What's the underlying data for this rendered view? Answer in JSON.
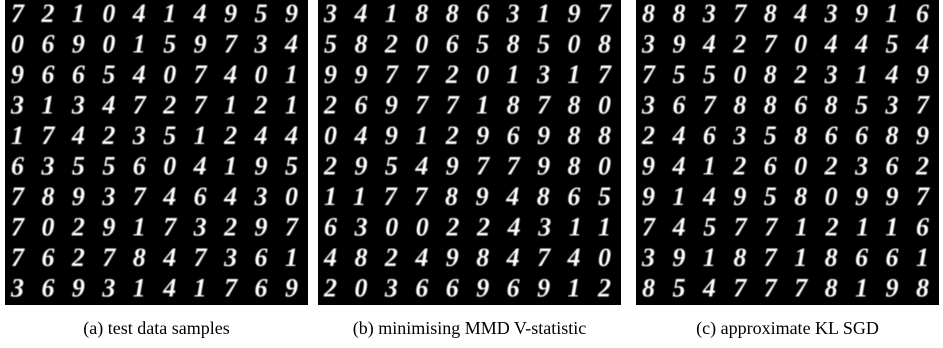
{
  "panels": [
    {
      "caption": "(a) test data samples",
      "rows": [
        "7210414959",
        "0690159734",
        "9665407401",
        "3134727121",
        "1742351244",
        "6355604195",
        "7893746430",
        "7029173297",
        "7627847361",
        "3693141769"
      ]
    },
    {
      "caption": "(b) minimising MMD V-statistic",
      "rows": [
        "3418863197",
        "5820658508",
        "9977201317",
        "2697718780",
        "0491296988",
        "2954977980",
        "1177894865",
        "6300224311",
        "4824984740",
        "2036696912"
      ]
    },
    {
      "caption": "(c) approximate KL SGD",
      "rows": [
        "8837843916",
        "3942704454",
        "7550823149",
        "3678868537",
        "2463586689",
        "9412602362",
        "9149580997",
        "7457712116",
        "3918718661",
        "8547778198"
      ]
    }
  ]
}
